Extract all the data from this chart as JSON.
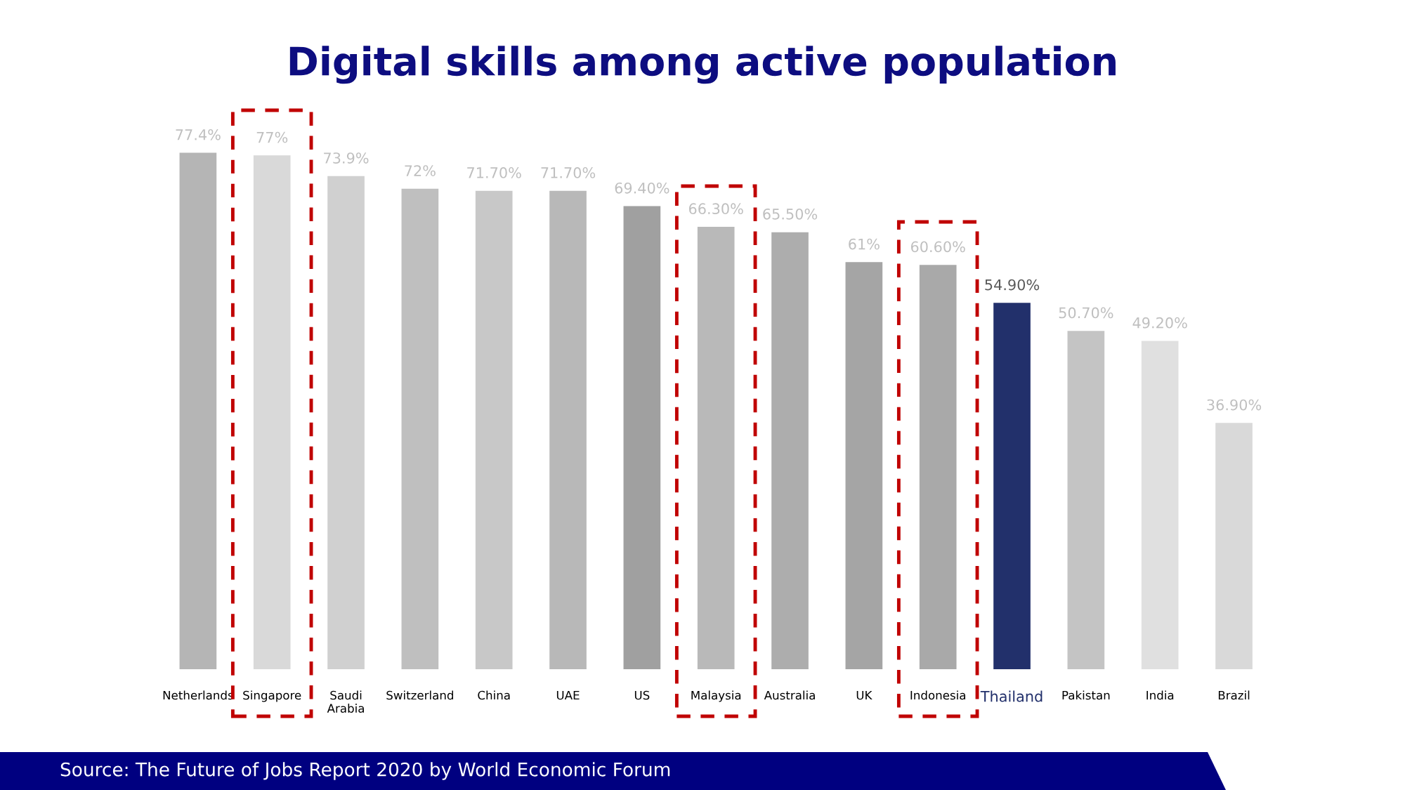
{
  "chart_data": {
    "type": "bar",
    "title": "Digital skills among active population",
    "categories": [
      "Netherlands",
      "Singapore",
      "Saudi\nArabia",
      "Switzerland",
      "China",
      "UAE",
      "US",
      "Malaysia",
      "Australia",
      "UK",
      "Indonesia",
      "Thailand",
      "Pakistan",
      "India",
      "Brazil"
    ],
    "values": [
      77.4,
      77,
      73.9,
      72,
      71.7,
      71.7,
      69.4,
      66.3,
      65.5,
      61,
      60.6,
      54.9,
      50.7,
      49.2,
      36.9
    ],
    "colors": [
      "#b5b5b5",
      "#d9d9d9",
      "#d0d0d0",
      "#bfbfbf",
      "#c8c8c8",
      "#b8b8b8",
      "#a0a0a0",
      "#b9b9b9",
      "#adadad",
      "#a5a5a5",
      "#a9a9a9",
      "#22306b",
      "#c4c4c4",
      "#e0e0e0",
      "#d9d9d9"
    ],
    "value_labels": [
      "77.4%",
      "77%",
      "73.9%",
      "72%",
      "71.70%",
      "71.70%",
      "69.40%",
      "66.30%",
      "65.50%",
      "61%",
      "60.60%",
      "54.90%",
      "50.70%",
      "49.20%",
      "36.90%"
    ],
    "annotations": [
      "Source: The Future of Jobs Report 2020 by World Economic Forum"
    ],
    "grid": false,
    "legend": false
  }
}
